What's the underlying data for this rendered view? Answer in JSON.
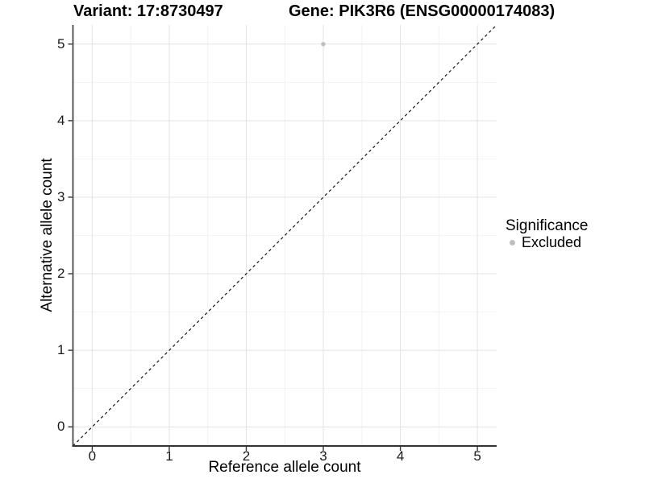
{
  "chart_data": {
    "type": "scatter",
    "titles": {
      "variant": "Variant: 17:8730497",
      "gene": "Gene: PIK3R6 (ENSG00000174083)"
    },
    "xlabel": "Reference allele count",
    "ylabel": "Alternative allele count",
    "x_ticks": [
      "0",
      "1",
      "2",
      "3",
      "4",
      "5"
    ],
    "y_ticks": [
      "0",
      "1",
      "2",
      "3",
      "4",
      "5"
    ],
    "x_minor_ticks": [
      0.5,
      1.5,
      2.5,
      3.5,
      4.5
    ],
    "y_minor_ticks": [
      0.5,
      1.5,
      2.5,
      3.5,
      4.5
    ],
    "xlim": [
      -0.25,
      5.25
    ],
    "ylim": [
      -0.25,
      5.25
    ],
    "grid": "major and minor, light gray on white",
    "series": [
      {
        "name": "Excluded",
        "color": "#bfbfbf",
        "points": [
          {
            "x": 3,
            "y": 5
          }
        ]
      }
    ],
    "reference_line": {
      "type": "identity",
      "slope": 1,
      "intercept": 0,
      "style": "dashed",
      "color": "#141414"
    },
    "legend": {
      "title": "Significance",
      "position": "right",
      "entries": [
        {
          "label": "Excluded",
          "color": "#bfbfbf",
          "marker": "circle"
        }
      ]
    }
  },
  "colors": {
    "background": "#ffffff",
    "grid_major": "#e3e3e3",
    "grid_minor": "#f2f2f2",
    "axis_line": "#333333",
    "tick_label": "#1a1a1a",
    "point": "#bfbfbf"
  }
}
